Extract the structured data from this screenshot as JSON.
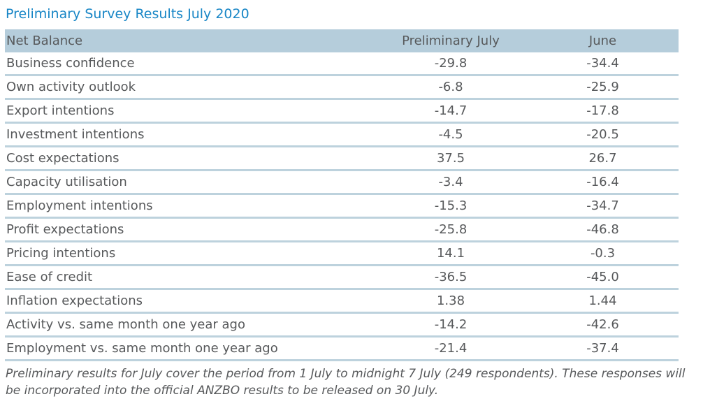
{
  "title": "Preliminary Survey Results July 2020",
  "table": {
    "columns": {
      "label": "Net Balance",
      "preliminary_july": "Preliminary July",
      "june": "June"
    },
    "rows": [
      {
        "label": "Business confidence",
        "preliminary_july": "-29.8",
        "june": "-34.4"
      },
      {
        "label": "Own activity outlook",
        "preliminary_july": "-6.8",
        "june": "-25.9"
      },
      {
        "label": "Export intentions",
        "preliminary_july": "-14.7",
        "june": "-17.8"
      },
      {
        "label": "Investment intentions",
        "preliminary_july": "-4.5",
        "june": "-20.5"
      },
      {
        "label": "Cost expectations",
        "preliminary_july": "37.5",
        "june": "26.7"
      },
      {
        "label": "Capacity utilisation",
        "preliminary_july": "-3.4",
        "june": "-16.4"
      },
      {
        "label": "Employment intentions",
        "preliminary_july": "-15.3",
        "june": "-34.7"
      },
      {
        "label": "Profit expectations",
        "preliminary_july": "-25.8",
        "june": "-46.8"
      },
      {
        "label": "Pricing intentions",
        "preliminary_july": "14.1",
        "june": "-0.3"
      },
      {
        "label": "Ease of credit",
        "preliminary_july": "-36.5",
        "june": "-45.0"
      },
      {
        "label": "Inflation expectations",
        "preliminary_july": "1.38",
        "june": "1.44"
      },
      {
        "label": "Activity vs. same month one year ago",
        "preliminary_july": "-14.2",
        "june": "-42.6"
      },
      {
        "label": "Employment vs. same month one year ago",
        "preliminary_july": "-21.4",
        "june": "-37.4"
      }
    ]
  },
  "footnote": "Preliminary results for July cover the period from 1 July to midnight 7 July (249 respondents). These responses will be incorporated into the official ANZBO results to be released on 30 July.",
  "colors": {
    "title_blue": "#1886c6",
    "header_bg": "#b5cddb",
    "row_border": "#bdd2dd",
    "text": "#57595b"
  }
}
